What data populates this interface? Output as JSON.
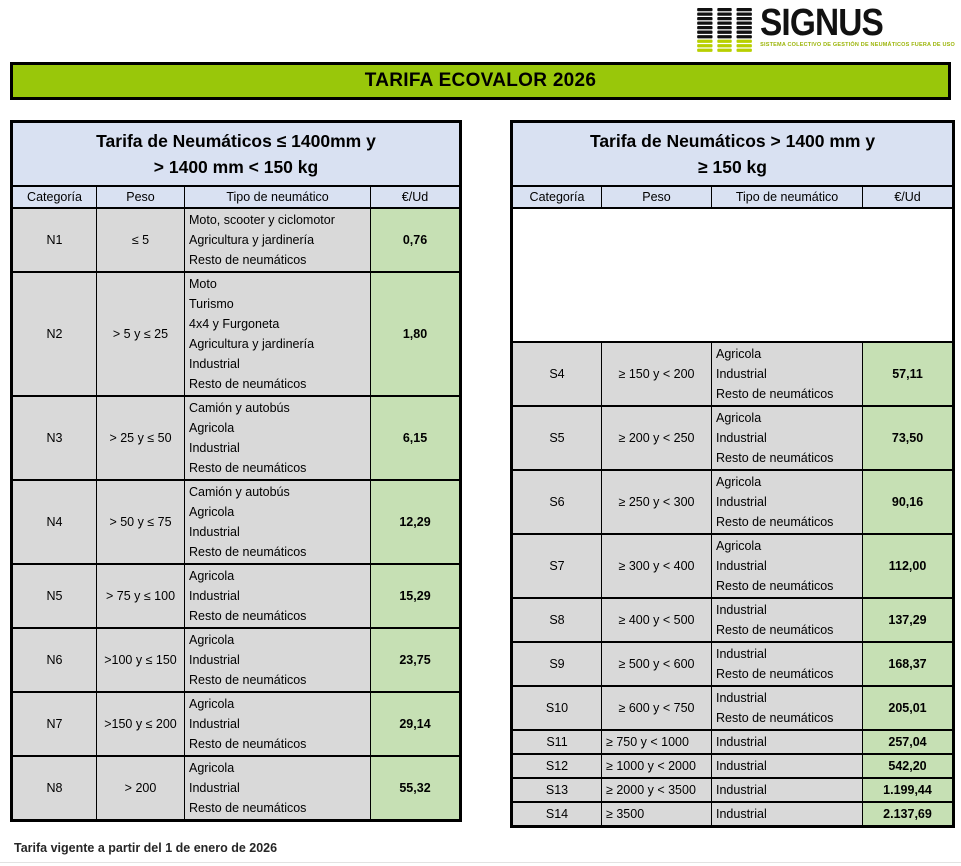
{
  "logo": {
    "brand": "SIGNUS",
    "tagline": "SISTEMA COLECTIVO DE GESTIÓN DE NEUMÁTICOS FUERA DE USO"
  },
  "title": "TARIFA ECOVALOR 2026",
  "footer": "Tarifa vigente a partir del 1 de enero de 2026",
  "columns": [
    "Categoría",
    "Peso",
    "Tipo de neumático",
    "€/Ud"
  ],
  "left_table": {
    "title_line1": "Tarifa de Neumáticos ≤ 1400mm y",
    "title_line2": "> 1400 mm  < 150 kg",
    "rows": [
      {
        "categoria": "N1",
        "peso": "≤ 5",
        "tipos": [
          "Moto, scooter y ciclomotor",
          "Agricultura y jardinería",
          "Resto de neumáticos"
        ],
        "precio": "0,76"
      },
      {
        "categoria": "N2",
        "peso": "> 5 y  ≤ 25",
        "tipos": [
          "Moto",
          "Turismo",
          "4x4 y Furgoneta",
          "Agricultura y jardinería",
          "Industrial",
          "Resto de neumáticos"
        ],
        "precio": "1,80"
      },
      {
        "categoria": "N3",
        "peso": "> 25 y ≤ 50",
        "tipos": [
          "Camión y autobús",
          "Agricola",
          "Industrial",
          "Resto de neumáticos"
        ],
        "precio": "6,15"
      },
      {
        "categoria": "N4",
        "peso": "> 50 y ≤ 75",
        "tipos": [
          "Camión y autobús",
          "Agricola",
          "Industrial",
          "Resto de neumáticos"
        ],
        "precio": "12,29"
      },
      {
        "categoria": "N5",
        "peso": "> 75 y ≤ 100",
        "tipos": [
          "Agricola",
          "Industrial",
          "Resto de neumáticos"
        ],
        "precio": "15,29"
      },
      {
        "categoria": "N6",
        "peso": ">100 y ≤ 150",
        "tipos": [
          "Agricola",
          "Industrial",
          "Resto de neumáticos"
        ],
        "precio": "23,75"
      },
      {
        "categoria": "N7",
        "peso": ">150 y ≤ 200",
        "tipos": [
          "Agricola",
          "Industrial",
          "Resto de neumáticos"
        ],
        "precio": "29,14"
      },
      {
        "categoria": "N8",
        "peso": "> 200",
        "tipos": [
          "Agricola",
          "Industrial",
          "Resto de neumáticos"
        ],
        "precio": "55,32"
      }
    ]
  },
  "right_table": {
    "title_line1": "Tarifa de Neumáticos > 1400 mm y",
    "title_line2": "≥ 150 kg",
    "rows": [
      {
        "categoria": "S4",
        "peso": "≥ 150 y < 200",
        "tipos": [
          "Agricola",
          "Industrial",
          "Resto de neumáticos"
        ],
        "precio": "57,11"
      },
      {
        "categoria": "S5",
        "peso": "≥ 200 y < 250",
        "tipos": [
          "Agricola",
          "Industrial",
          "Resto de neumáticos"
        ],
        "precio": "73,50"
      },
      {
        "categoria": "S6",
        "peso": "≥ 250 y < 300",
        "tipos": [
          "Agricola",
          "Industrial",
          "Resto de neumáticos"
        ],
        "precio": "90,16"
      },
      {
        "categoria": "S7",
        "peso": "≥ 300 y < 400",
        "tipos": [
          "Agricola",
          "Industrial",
          "Resto de neumáticos"
        ],
        "precio": "112,00"
      },
      {
        "categoria": "S8",
        "peso": "≥ 400 y < 500",
        "tipos": [
          "Industrial",
          "Resto de neumáticos"
        ],
        "precio": "137,29"
      },
      {
        "categoria": "S9",
        "peso": "≥ 500 y < 600",
        "tipos": [
          "Industrial",
          "Resto de neumáticos"
        ],
        "precio": "168,37"
      },
      {
        "categoria": "S10",
        "peso": "≥ 600 y < 750",
        "tipos": [
          "Industrial",
          "Resto de neumáticos"
        ],
        "precio": "205,01"
      },
      {
        "categoria": "S11",
        "peso": "≥ 750 y < 1000",
        "tipos": [
          "Industrial"
        ],
        "precio": "257,04"
      },
      {
        "categoria": "S12",
        "peso": "≥ 1000 y < 2000",
        "tipos": [
          "Industrial"
        ],
        "precio": "542,20"
      },
      {
        "categoria": "S13",
        "peso": "≥ 2000 y < 3500",
        "tipos": [
          "Industrial"
        ],
        "precio": "1.199,44"
      },
      {
        "categoria": "S14",
        "peso": "≥ 3500",
        "tipos": [
          "Industrial"
        ],
        "precio": "2.137,69"
      }
    ]
  },
  "colors": {
    "title_bar_green": "#99C70A",
    "header_blue": "#D9E1F2",
    "cell_gray": "#D9D9D9",
    "price_green": "#C6E0B4",
    "logo_green": "#9CB50A",
    "border_black": "#000000"
  }
}
